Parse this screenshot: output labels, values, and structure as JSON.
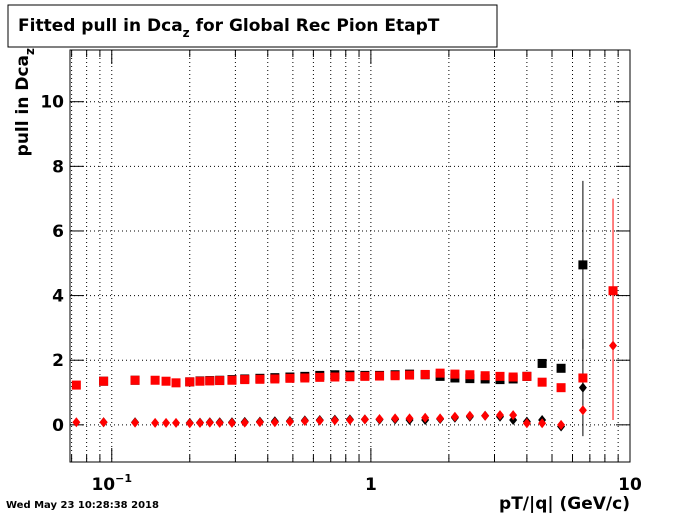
{
  "chart_data": {
    "type": "scatter",
    "title": {
      "main": "Fitted pull in Dca",
      "sub": "z",
      "rest": " for Global Rec Pion EtapT"
    },
    "y_label": {
      "main": "pull in Dca",
      "sub": "z"
    },
    "x_label": "pT/|q| (GeV/c)",
    "timestamp": "Wed May 23 10:28:38 2018",
    "log_x": true,
    "grid": true,
    "xlim": [
      0.069,
      10
    ],
    "ylim": [
      -1.15,
      11.6
    ],
    "xticks": [
      {
        "value": 0.1,
        "label": "10",
        "exponent": "−1"
      },
      1,
      10
    ],
    "xminorticks": [
      0.07,
      0.08,
      0.09,
      0.2,
      0.3,
      0.4,
      0.5,
      0.6,
      0.7,
      0.8,
      0.9,
      2,
      3,
      4,
      5,
      6,
      7,
      8,
      9
    ],
    "yticks": [
      0,
      2,
      4,
      6,
      8,
      10
    ],
    "x": [
      0.073,
      0.093,
      0.123,
      0.147,
      0.162,
      0.177,
      0.2,
      0.219,
      0.239,
      0.261,
      0.291,
      0.326,
      0.373,
      0.426,
      0.487,
      0.556,
      0.635,
      0.726,
      0.83,
      0.948,
      1.08,
      1.24,
      1.41,
      1.62,
      1.85,
      2.11,
      2.41,
      2.76,
      3.15,
      3.54,
      4.0,
      4.58,
      5.42,
      6.58,
      8.6
    ],
    "series": [
      {
        "color": "#000000",
        "marker": "square",
        "values": [
          null,
          1.35,
          1.38,
          null,
          null,
          null,
          1.33,
          1.36,
          1.37,
          1.38,
          1.4,
          1.42,
          1.44,
          1.46,
          1.48,
          1.5,
          1.53,
          1.55,
          1.54,
          1.53,
          1.53,
          1.55,
          1.57,
          1.55,
          1.5,
          1.45,
          1.43,
          1.42,
          1.4,
          1.42,
          1.5,
          1.9,
          1.75,
          4.95,
          null
        ],
        "errors": [
          null,
          null,
          null,
          null,
          null,
          null,
          null,
          null,
          null,
          null,
          null,
          null,
          null,
          null,
          null,
          null,
          null,
          null,
          null,
          null,
          null,
          null,
          null,
          null,
          null,
          null,
          null,
          null,
          null,
          null,
          null,
          null,
          null,
          2.6,
          null
        ]
      },
      {
        "color": "#000000",
        "marker": "diamond",
        "values": [
          null,
          0.08,
          0.08,
          null,
          null,
          null,
          0.06,
          0.07,
          0.08,
          0.08,
          0.08,
          0.09,
          0.1,
          0.11,
          0.12,
          0.14,
          0.15,
          0.16,
          0.17,
          0.17,
          0.16,
          0.17,
          0.15,
          0.15,
          0.18,
          0.22,
          0.25,
          0.28,
          0.25,
          0.15,
          0.1,
          0.15,
          -0.05,
          1.15,
          null
        ],
        "errors": [
          null,
          null,
          null,
          null,
          null,
          null,
          null,
          null,
          null,
          null,
          null,
          null,
          null,
          null,
          null,
          null,
          null,
          null,
          null,
          null,
          null,
          null,
          null,
          null,
          null,
          null,
          null,
          null,
          null,
          null,
          null,
          null,
          null,
          1.5,
          null
        ]
      },
      {
        "color": "#ff0000",
        "marker": "square",
        "values": [
          1.23,
          1.35,
          1.38,
          1.38,
          1.35,
          1.3,
          1.33,
          1.35,
          1.36,
          1.37,
          1.38,
          1.4,
          1.41,
          1.42,
          1.44,
          1.45,
          1.47,
          1.48,
          1.49,
          1.5,
          1.51,
          1.52,
          1.54,
          1.56,
          1.6,
          1.57,
          1.55,
          1.52,
          1.5,
          1.48,
          1.5,
          1.32,
          1.15,
          1.45,
          4.15
        ],
        "errors": [
          null,
          null,
          null,
          null,
          null,
          null,
          null,
          null,
          null,
          null,
          null,
          null,
          null,
          null,
          null,
          null,
          null,
          null,
          null,
          null,
          null,
          null,
          null,
          null,
          null,
          null,
          null,
          null,
          null,
          null,
          null,
          null,
          null,
          null,
          2.85
        ]
      },
      {
        "color": "#ff0000",
        "marker": "diamond",
        "values": [
          0.08,
          0.08,
          0.07,
          0.06,
          0.06,
          0.06,
          0.05,
          0.06,
          0.07,
          0.06,
          0.06,
          0.07,
          0.08,
          0.08,
          0.1,
          0.12,
          0.13,
          0.14,
          0.15,
          0.17,
          0.18,
          0.2,
          0.2,
          0.22,
          0.2,
          0.25,
          0.28,
          0.28,
          0.3,
          0.3,
          0.05,
          0.05,
          0.0,
          0.45,
          2.45
        ],
        "errors": [
          null,
          null,
          null,
          null,
          null,
          null,
          null,
          null,
          null,
          null,
          null,
          null,
          null,
          null,
          null,
          null,
          null,
          null,
          null,
          null,
          null,
          null,
          null,
          null,
          null,
          null,
          null,
          null,
          null,
          null,
          null,
          null,
          null,
          null,
          2.3
        ]
      }
    ]
  }
}
